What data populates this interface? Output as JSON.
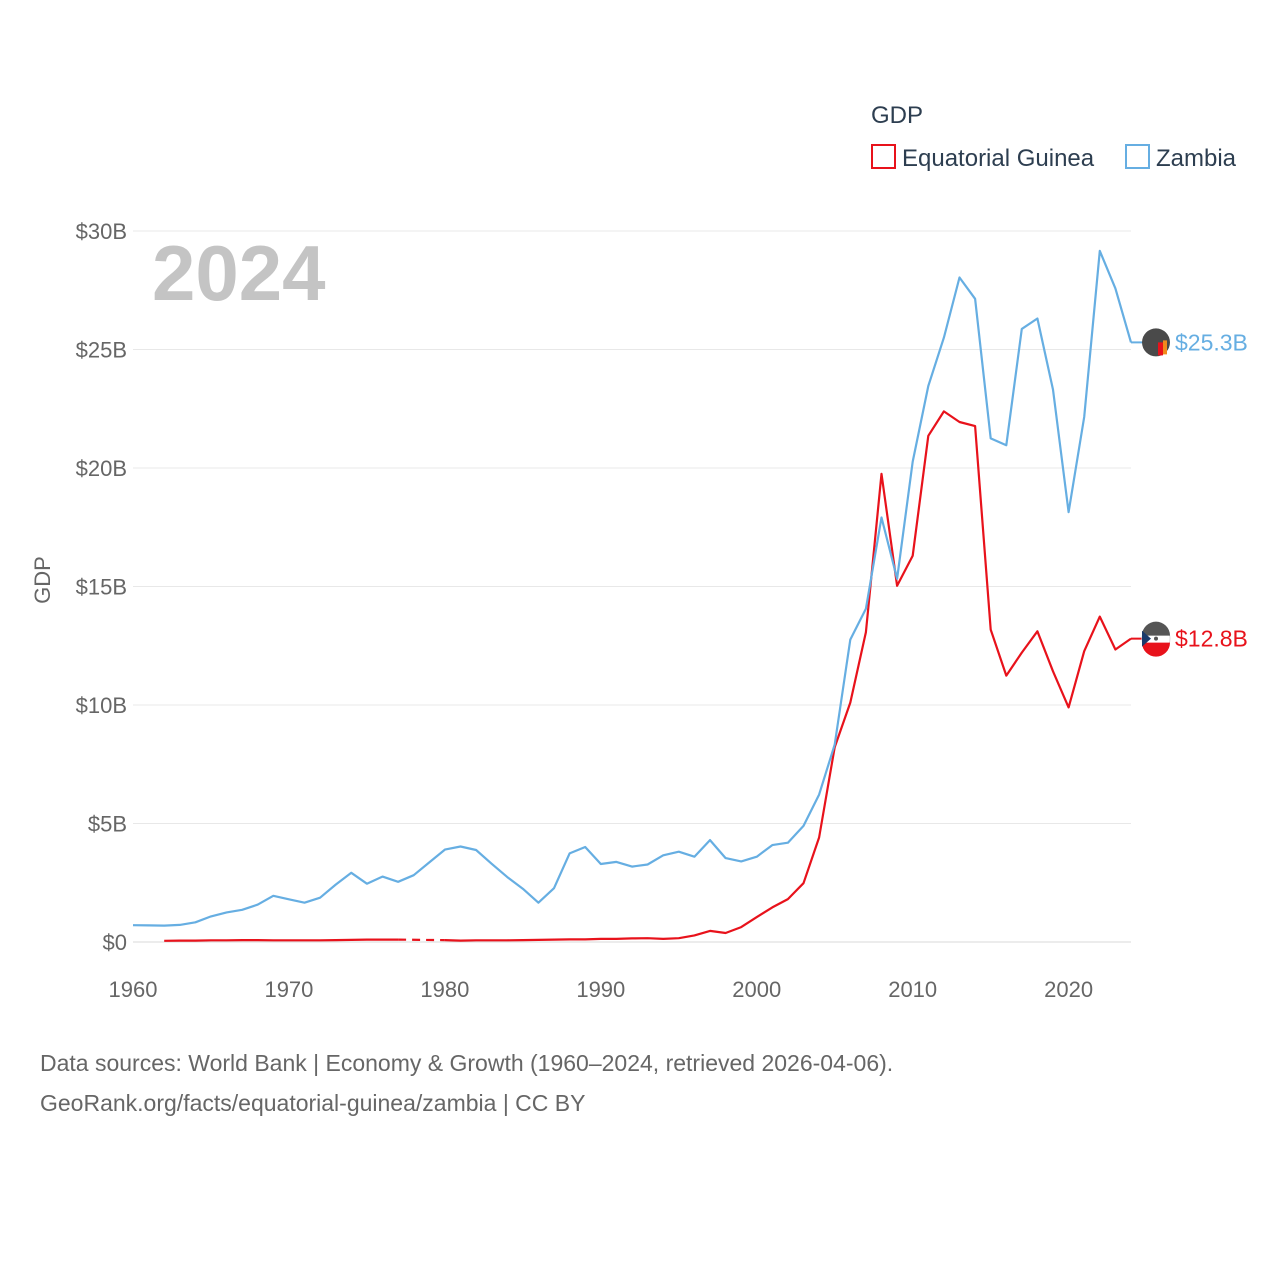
{
  "chart_data": {
    "type": "line",
    "title": "GDP",
    "year_label": "2024",
    "ylabel": "GDP",
    "xlim": [
      1960,
      2024
    ],
    "ylim": [
      0,
      30
    ],
    "y_unit": "billion USD",
    "x_ticks": [
      1960,
      1970,
      1980,
      1990,
      2000,
      2010,
      2020
    ],
    "x_tick_labels": [
      "1960",
      "1970",
      "1980",
      "1990",
      "2000",
      "2010",
      "2020"
    ],
    "y_ticks": [
      0,
      5,
      10,
      15,
      20,
      25,
      30
    ],
    "y_tick_labels": [
      "$0",
      "$5B",
      "$10B",
      "$15B",
      "$20B",
      "$25B",
      "$30B"
    ],
    "legend": [
      "Equatorial Guinea",
      "Zambia"
    ],
    "series": [
      {
        "name": "Equatorial Guinea",
        "color": "#e8121b",
        "end_label": "$12.8B",
        "x": [
          1962,
          1963,
          1964,
          1965,
          1966,
          1967,
          1968,
          1969,
          1970,
          1971,
          1972,
          1973,
          1974,
          1975,
          1976,
          1977,
          1978,
          1979,
          1980,
          1981,
          1982,
          1983,
          1984,
          1985,
          1986,
          1987,
          1988,
          1989,
          1990,
          1991,
          1992,
          1993,
          1994,
          1995,
          1996,
          1997,
          1998,
          1999,
          2000,
          2001,
          2002,
          2003,
          2004,
          2005,
          2006,
          2007,
          2008,
          2009,
          2010,
          2011,
          2012,
          2013,
          2014,
          2015,
          2016,
          2017,
          2018,
          2019,
          2020,
          2021,
          2022,
          2023,
          2024
        ],
        "values": [
          0.05,
          0.06,
          0.06,
          0.07,
          0.07,
          0.08,
          0.08,
          0.07,
          0.07,
          0.07,
          0.07,
          0.08,
          0.09,
          0.1,
          0.1,
          0.1,
          null,
          null,
          0.08,
          0.06,
          0.07,
          0.07,
          0.07,
          0.08,
          0.09,
          0.1,
          0.11,
          0.11,
          0.13,
          0.13,
          0.15,
          0.16,
          0.13,
          0.16,
          0.28,
          0.47,
          0.38,
          0.63,
          1.05,
          1.46,
          1.81,
          2.48,
          4.41,
          8.22,
          10.1,
          13.07,
          19.75,
          15.03,
          16.3,
          21.36,
          22.39,
          21.94,
          21.77,
          13.18,
          11.24,
          12.21,
          13.11,
          11.42,
          9.9,
          12.27,
          13.73,
          12.34,
          12.8
        ]
      },
      {
        "name": "Zambia",
        "color": "#66aee2",
        "end_label": "$25.3B",
        "x": [
          1960,
          1961,
          1962,
          1963,
          1964,
          1965,
          1966,
          1967,
          1968,
          1969,
          1970,
          1971,
          1972,
          1973,
          1974,
          1975,
          1976,
          1977,
          1978,
          1979,
          1980,
          1981,
          1982,
          1983,
          1984,
          1985,
          1986,
          1987,
          1988,
          1989,
          1990,
          1991,
          1992,
          1993,
          1994,
          1995,
          1996,
          1997,
          1998,
          1999,
          2000,
          2001,
          2002,
          2003,
          2004,
          2005,
          2006,
          2007,
          2008,
          2009,
          2010,
          2011,
          2012,
          2013,
          2014,
          2015,
          2016,
          2017,
          2018,
          2019,
          2020,
          2021,
          2022,
          2023,
          2024
        ],
        "values": [
          0.71,
          0.7,
          0.69,
          0.72,
          0.83,
          1.08,
          1.25,
          1.36,
          1.58,
          1.95,
          1.8,
          1.66,
          1.87,
          2.42,
          2.92,
          2.46,
          2.76,
          2.54,
          2.82,
          3.36,
          3.9,
          4.03,
          3.88,
          3.3,
          2.74,
          2.25,
          1.66,
          2.27,
          3.74,
          4.01,
          3.29,
          3.38,
          3.18,
          3.27,
          3.66,
          3.81,
          3.6,
          4.3,
          3.54,
          3.4,
          3.6,
          4.09,
          4.19,
          4.9,
          6.22,
          8.33,
          12.76,
          14.06,
          17.91,
          15.33,
          20.27,
          23.46,
          25.5,
          28.04,
          27.14,
          21.25,
          20.96,
          25.87,
          26.31,
          23.31,
          18.14,
          22.15,
          29.16,
          27.58,
          25.3
        ]
      }
    ]
  },
  "source_lines": [
    "Data sources: World Bank | Economy & Growth (1960–2024, retrieved 2026-04-06).",
    "GeoRank.org/facts/equatorial-guinea/zambia | CC BY"
  ]
}
